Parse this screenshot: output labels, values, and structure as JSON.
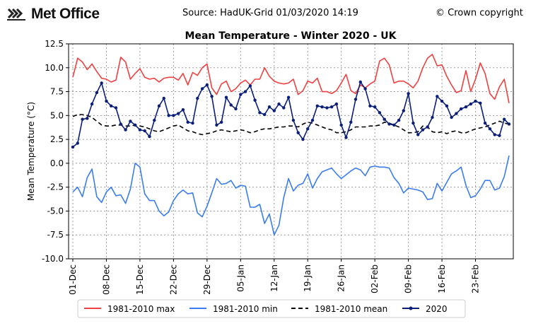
{
  "header": {
    "logo_text": "Met Office",
    "source": "Source: HadUK-Grid 01/03/2020 14:19",
    "copyright": "© Crown copyright"
  },
  "chart_data": {
    "type": "line",
    "title": "Mean Temperature - Winter 2020 - UK",
    "xlabel": "",
    "ylabel": "Mean Temperature (°C)",
    "ylim": [
      -10,
      12.5
    ],
    "yticks": [
      "12.5",
      "10.0",
      "7.5",
      "5.0",
      "2.5",
      "0.0",
      "-2.5",
      "-5.0",
      "-7.5",
      "-10.0"
    ],
    "xticks": [
      "01-Dec",
      "08-Dec",
      "15-Dec",
      "22-Dec",
      "29-Dec",
      "05-Jan",
      "12-Jan",
      "19-Jan",
      "26-Jan",
      "02-Feb",
      "09-Feb",
      "16-Feb",
      "23-Feb"
    ],
    "grid": true,
    "legend_position": "bottom",
    "colors": {
      "max": "#f04040",
      "min": "#3a7df0",
      "mean": "#000000",
      "y2020": "#0a1e7a"
    },
    "series": [
      {
        "name": "1981-2010 max",
        "style": "solid",
        "values": [
          9.0,
          11.0,
          10.6,
          9.8,
          10.4,
          9.6,
          8.9,
          8.8,
          8.5,
          8.7,
          11.1,
          10.6,
          8.8,
          9.4,
          9.9,
          9.0,
          8.8,
          8.9,
          8.5,
          8.9,
          9.0,
          9.0,
          8.7,
          9.4,
          8.2,
          9.5,
          9.2,
          10.0,
          10.4,
          7.9,
          7.2,
          8.3,
          8.6,
          7.5,
          7.8,
          8.4,
          8.7,
          8.2,
          8.8,
          8.8,
          10.0,
          9.1,
          8.6,
          8.4,
          8.3,
          8.4,
          8.8,
          7.2,
          7.6,
          8.6,
          8.4,
          8.9,
          7.5,
          7.5,
          7.3,
          7.6,
          8.4,
          9.3,
          7.6,
          7.3,
          8.2,
          7.9,
          8.3,
          8.6,
          10.7,
          11.0,
          10.3,
          8.4,
          8.6,
          8.6,
          8.3,
          7.9,
          8.6,
          10.0,
          11.0,
          11.4,
          10.2,
          10.3,
          9.1,
          8.2,
          7.4,
          7.6,
          9.7,
          7.5,
          8.8,
          10.5,
          9.4,
          7.3,
          6.7,
          8.0,
          8.8,
          6.3
        ]
      },
      {
        "name": "1981-2010 min",
        "style": "solid",
        "values": [
          -3.0,
          -2.5,
          -3.5,
          -1.5,
          -0.6,
          -3.5,
          -4.1,
          -3.0,
          -2.5,
          -3.4,
          -3.3,
          -4.2,
          -2.7,
          0.0,
          -0.4,
          -3.2,
          -3.9,
          -3.9,
          -5.0,
          -5.5,
          -5.1,
          -3.9,
          -3.2,
          -2.8,
          -3.2,
          -3.1,
          -5.2,
          -5.6,
          -4.5,
          -3.1,
          -1.6,
          -2.2,
          -2.1,
          -1.8,
          -2.6,
          -2.3,
          -2.4,
          -4.6,
          -4.6,
          -4.3,
          -6.3,
          -5.3,
          -7.5,
          -6.5,
          -3.6,
          -1.6,
          -2.9,
          -2.3,
          -2.1,
          -1.1,
          -2.6,
          -1.6,
          -0.9,
          -0.7,
          -0.5,
          -1.1,
          -1.6,
          -1.2,
          -0.8,
          -0.5,
          -0.7,
          -1.3,
          -0.4,
          -0.3,
          -0.4,
          -0.4,
          -0.5,
          -1.5,
          -2.1,
          -3.1,
          -2.6,
          -2.7,
          -2.8,
          -3.0,
          -3.8,
          -3.7,
          -2.1,
          -2.9,
          -2.0,
          -1.1,
          -0.8,
          -0.4,
          -2.3,
          -3.6,
          -3.4,
          -2.7,
          -1.8,
          -1.8,
          -2.8,
          -2.6,
          -1.4,
          0.8
        ]
      },
      {
        "name": "1981-2010 mean",
        "style": "dashed",
        "values": [
          4.9,
          5.1,
          5.1,
          5.0,
          4.8,
          4.4,
          4.0,
          3.9,
          3.9,
          4.0,
          4.0,
          3.9,
          3.9,
          4.0,
          3.9,
          3.8,
          3.6,
          3.4,
          3.3,
          3.5,
          3.7,
          3.9,
          4.0,
          3.7,
          3.4,
          3.3,
          3.1,
          3.0,
          3.1,
          3.2,
          3.4,
          3.5,
          3.4,
          3.3,
          3.4,
          3.5,
          3.4,
          3.2,
          3.3,
          3.5,
          3.6,
          3.6,
          3.7,
          3.8,
          3.8,
          3.9,
          3.9,
          3.8,
          4.1,
          4.3,
          4.2,
          4.0,
          3.8,
          3.6,
          3.5,
          3.2,
          3.2,
          3.3,
          3.5,
          3.8,
          3.8,
          3.8,
          3.9,
          3.9,
          4.0,
          4.3,
          4.2,
          4.0,
          3.8,
          3.5,
          3.2,
          3.2,
          3.3,
          3.9,
          3.8,
          3.3,
          3.2,
          3.3,
          3.1,
          3.3,
          3.4,
          3.2,
          3.2,
          3.4,
          3.6,
          3.7,
          3.8,
          4.0,
          4.2,
          4.4,
          4.2,
          4.1
        ]
      },
      {
        "name": "2020",
        "style": "marker",
        "values": [
          1.7,
          2.1,
          4.6,
          4.7,
          6.2,
          7.4,
          8.4,
          6.5,
          6.0,
          5.8,
          4.1,
          3.5,
          4.4,
          4.0,
          3.5,
          3.4,
          2.8,
          4.5,
          6.0,
          6.8,
          5.0,
          5.0,
          5.2,
          5.6,
          4.3,
          4.2,
          6.8,
          7.8,
          8.2,
          7.0,
          4.0,
          4.3,
          6.9,
          6.1,
          5.7,
          7.2,
          7.5,
          8.1,
          6.6,
          5.3,
          5.1,
          5.9,
          5.5,
          6.2,
          5.8,
          6.9,
          4.5,
          3.2,
          2.5,
          3.6,
          4.5,
          6.0,
          5.9,
          5.8,
          5.9,
          6.2,
          4.0,
          2.7,
          4.3,
          6.7,
          8.5,
          7.8,
          6.0,
          5.9,
          5.3,
          4.6,
          4.1,
          4.0,
          4.5,
          5.5,
          7.3,
          4.2,
          3.0,
          3.5,
          3.8,
          4.8,
          7.0,
          6.5,
          6.0,
          4.8,
          5.2,
          5.7,
          5.9,
          6.2,
          6.5,
          6.3,
          4.2,
          3.6,
          3.0,
          2.9,
          4.6,
          4.1
        ]
      }
    ]
  }
}
